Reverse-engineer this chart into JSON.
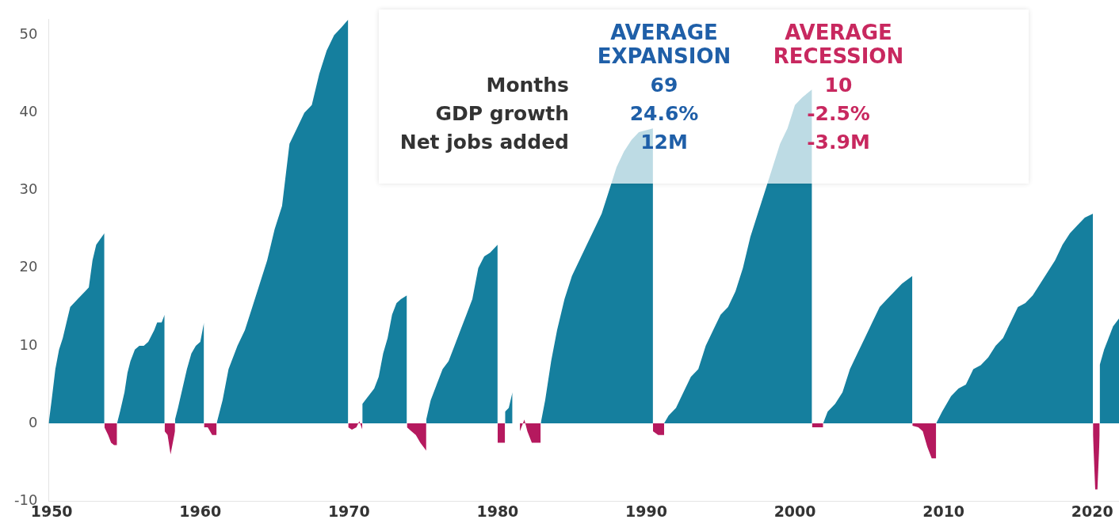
{
  "chart_data": [
    {
      "type": "area",
      "xlim": [
        1949.8,
        2021.8
      ],
      "ylim": [
        -10,
        52
      ],
      "xticks": [
        1950,
        1960,
        1970,
        1980,
        1990,
        2000,
        2010,
        2020
      ],
      "yticks": [
        -10,
        0,
        10,
        20,
        30,
        40,
        50
      ],
      "grid": false,
      "legend": false,
      "series": [
        {
          "color": "#157f9e",
          "x": [
            1949.8,
            1950.0,
            1950.25,
            1950.5,
            1950.75,
            1951.0,
            1951.25,
            1951.75,
            1952.25,
            1952.5,
            1952.75,
            1953.0,
            1953.55,
            1953.56,
            1954.4,
            1954.6,
            1954.9,
            1955.1,
            1955.3,
            1955.6,
            1955.9,
            1956.2,
            1956.5,
            1956.9,
            1957.1,
            1957.4,
            1957.6,
            1957.61,
            1958.3,
            1958.5,
            1958.8,
            1959.1,
            1959.4,
            1959.7,
            1960.0,
            1960.25,
            1960.26,
            1961.1,
            1961.5,
            1961.9,
            1962.5,
            1963.0,
            1963.5,
            1964.0,
            1964.5,
            1965.0,
            1965.5,
            1966.0,
            1966.5,
            1967.0,
            1967.5,
            1968.0,
            1968.5,
            1969.0,
            1969.5,
            1969.95,
            1969.96,
            1970.9,
            1971.3,
            1971.7,
            1972.0,
            1972.3,
            1972.6,
            1972.9,
            1973.2,
            1973.5,
            1973.9,
            1973.91,
            1975.2,
            1975.5,
            1975.9,
            1976.3,
            1976.7,
            1977.1,
            1977.5,
            1977.9,
            1978.3,
            1978.7,
            1979.1,
            1979.5,
            1980.0,
            1980.01,
            1980.5,
            1980.75,
            1981.0,
            1981.02,
            1982.9,
            1983.2,
            1983.6,
            1984.0,
            1984.5,
            1985.0,
            1985.5,
            1986.0,
            1986.5,
            1987.0,
            1987.5,
            1988.0,
            1988.5,
            1989.0,
            1989.5,
            1990.45,
            1990.46,
            1991.2,
            1991.5,
            1992.0,
            1992.5,
            1993.0,
            1993.5,
            1994.0,
            1994.5,
            1995.0,
            1995.5,
            1996.0,
            1996.5,
            1997.0,
            1997.5,
            1998.0,
            1998.5,
            1999.0,
            1999.5,
            2000.0,
            2000.5,
            2001.15,
            2001.16,
            2001.9,
            2002.2,
            2002.7,
            2003.2,
            2003.7,
            2004.2,
            2004.7,
            2005.2,
            2005.7,
            2006.2,
            2006.7,
            2007.2,
            2007.9,
            2007.91,
            2009.5,
            2009.9,
            2010.5,
            2011.0,
            2011.5,
            2012.0,
            2012.5,
            2013.0,
            2013.5,
            2014.0,
            2014.5,
            2015.0,
            2015.5,
            2016.0,
            2016.5,
            2017.0,
            2017.5,
            2018.0,
            2018.5,
            2019.0,
            2019.5,
            2020.05,
            2020.06,
            2020.5,
            2020.8,
            2021.1,
            2021.4,
            2021.8
          ],
          "values": [
            0,
            3,
            7,
            9.5,
            11,
            13,
            15,
            16,
            17,
            17.5,
            21,
            23,
            24.5,
            null,
            0,
            1.5,
            4,
            6.5,
            8,
            9.5,
            10,
            10,
            10.5,
            12,
            13,
            13,
            14,
            null,
            0.5,
            2,
            4.5,
            7,
            9,
            10,
            10.5,
            13,
            null,
            0,
            3,
            7,
            10,
            12,
            15,
            18,
            21,
            25,
            28,
            36,
            38,
            40,
            41,
            45,
            48,
            50,
            51,
            52,
            null,
            2.5,
            3.5,
            4.5,
            6,
            9,
            11,
            14,
            15.5,
            16,
            16.5,
            null,
            0.5,
            3,
            5,
            7,
            8,
            10,
            12,
            14,
            16,
            20,
            21.5,
            22,
            23,
            null,
            1.5,
            2,
            4,
            null,
            0,
            3,
            8,
            12,
            16,
            19,
            21,
            23,
            25,
            27,
            30,
            33,
            35,
            36.5,
            37.5,
            38,
            null,
            0,
            1,
            2,
            4,
            6,
            7,
            10,
            12,
            14,
            15,
            17,
            20,
            24,
            27,
            30,
            33,
            36,
            38,
            41,
            42,
            43,
            null,
            0,
            1.5,
            2.5,
            4,
            7,
            9,
            11,
            13,
            15,
            16,
            17,
            18,
            19,
            null,
            0,
            1.5,
            3.5,
            4.5,
            5,
            7,
            7.5,
            8.5,
            10,
            11,
            13,
            15,
            15.5,
            16.5,
            18,
            19.5,
            21,
            23,
            24.5,
            25.5,
            26.5,
            27,
            null,
            7.5,
            9.5,
            11,
            12.5,
            13.5
          ]
        },
        {
          "color": "#b5195e",
          "x": [
            1953.55,
            1953.8,
            1954.0,
            1954.2,
            1954.4,
            1954.41,
            1957.6,
            1957.8,
            1958.0,
            1958.3,
            1958.31,
            1960.25,
            1960.5,
            1960.8,
            1961.1,
            1961.11,
            1969.95,
            1970.2,
            1970.5,
            1970.7,
            1970.9,
            1970.91,
            1973.9,
            1974.2,
            1974.5,
            1974.8,
            1975.2,
            1975.21,
            1980.0,
            1980.5,
            1980.51,
            1981.5,
            1981.8,
            1982.0,
            1982.3,
            1982.6,
            1982.9,
            1982.91,
            1990.45,
            1990.8,
            1991.2,
            1991.21,
            2001.15,
            2001.9,
            2001.91,
            2007.9,
            2008.3,
            2008.6,
            2008.9,
            2009.2,
            2009.5,
            2009.51,
            2020.05,
            2020.2,
            2020.35,
            2020.5
          ],
          "values": [
            -0.5,
            -1.5,
            -2.5,
            -2.8,
            -2.8,
            null,
            -1,
            -1.5,
            -4,
            -1,
            null,
            -0.5,
            -0.5,
            -1.5,
            -1.5,
            null,
            -0.5,
            -0.8,
            -0.5,
            0.3,
            -0.8,
            null,
            -0.5,
            -1,
            -1.5,
            -2.5,
            -3.5,
            null,
            -2.5,
            -2.5,
            null,
            -1,
            0.5,
            -1,
            -2.5,
            -2.5,
            -2.5,
            null,
            -1,
            -1.5,
            -1.5,
            null,
            -0.5,
            -0.5,
            null,
            -0.3,
            -0.5,
            -1,
            -3,
            -4.5,
            -4.5,
            null,
            -1.5,
            -8.5,
            -8.5,
            -1.5
          ]
        }
      ]
    },
    {
      "type": "other",
      "categories": [
        "AVERAGE EXPANSION",
        "AVERAGE RECESSION"
      ],
      "y_categories": [
        "Months",
        "GDP growth",
        "Net jobs added"
      ],
      "cell_labels": [
        [
          "69",
          "10"
        ],
        [
          "24.6%",
          "-2.5%"
        ],
        [
          "12M",
          "-3.9M"
        ]
      ],
      "colors": [
        "#1f5fa8",
        "#c8285f"
      ]
    }
  ]
}
